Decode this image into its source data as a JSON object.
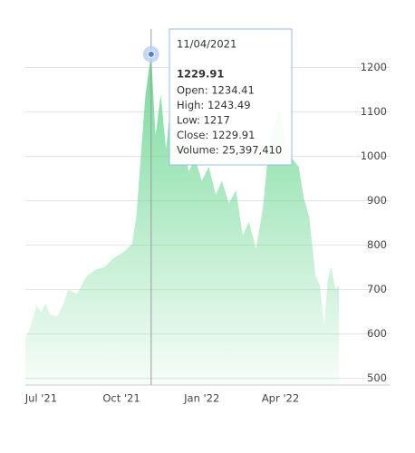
{
  "chart_data": {
    "type": "area",
    "color": "#7ddc9e",
    "x": [
      -18,
      -14,
      -5,
      0,
      5,
      10,
      18,
      26,
      31,
      41,
      52,
      62,
      73,
      83,
      93,
      104,
      109,
      114,
      119,
      123,
      126,
      131,
      137,
      143,
      148,
      155,
      161,
      169,
      176,
      184,
      192,
      200,
      207,
      215,
      223,
      231,
      238,
      246,
      254,
      260,
      266,
      273,
      280,
      287,
      295,
      301,
      307,
      314,
      319,
      324,
      328,
      332,
      337,
      341
    ],
    "values": [
      588,
      608,
      663,
      649,
      669,
      645,
      639,
      669,
      700,
      690,
      730,
      745,
      751,
      771,
      782,
      802,
      863,
      996,
      1129,
      1190,
      1229.91,
      1047,
      1139,
      1016,
      1108,
      996,
      1067,
      965,
      996,
      945,
      976,
      914,
      945,
      894,
      924,
      822,
      853,
      792,
      884,
      1006,
      1067,
      1108,
      1027,
      996,
      976,
      904,
      863,
      731,
      710,
      618,
      720,
      751,
      700,
      710
    ],
    "xlim": [
      -18,
      399
    ],
    "xticks": [
      {
        "value": 0,
        "label": "Jul '21"
      },
      {
        "value": 92,
        "label": "Oct '21"
      },
      {
        "value": 184,
        "label": "Jan '22"
      },
      {
        "value": 274,
        "label": "Apr '22"
      }
    ],
    "ylim": [
      485,
      1295
    ],
    "yticks": [
      500,
      600,
      700,
      800,
      900,
      1000,
      1100,
      1200
    ],
    "grid": true,
    "tooltip": {
      "index": 20,
      "date": "11/04/2021",
      "lines": [
        "Open: 1234.41",
        "High: 1243.49",
        "Low: 1217",
        "Close: 1229.91",
        "Volume: 25,397,410"
      ]
    }
  }
}
